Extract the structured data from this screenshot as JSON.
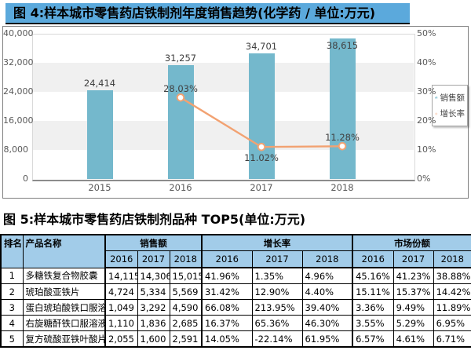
{
  "figure4": {
    "title": "图 4:样本城市零售药店铁制剂年度销售趋势(化学药 / 单位:万元)",
    "legend": [
      {
        "label": "销售额",
        "icon": "mini-bar-chart-icon"
      },
      {
        "label": "增长率",
        "icon": "diamond-marker-icon"
      }
    ]
  },
  "chart_data": {
    "type": "bar",
    "subtype": "combo-bar-line",
    "title": "样本城市零售药店铁制剂年度销售趋势(化学药 / 单位:万元)",
    "categories": [
      "2015",
      "2016",
      "2017",
      "2018"
    ],
    "series": [
      {
        "name": "销售额",
        "type": "bar",
        "axis": "left",
        "values": [
          24414,
          31257,
          34701,
          38615
        ],
        "labels": [
          "24,414",
          "31,257",
          "34,701",
          "38,615"
        ]
      },
      {
        "name": "增长率",
        "type": "line",
        "axis": "right",
        "values": [
          null,
          28.03,
          11.02,
          11.28
        ],
        "labels": [
          null,
          "28.03%",
          "11.02%",
          "11.28%"
        ]
      }
    ],
    "left_axis": {
      "min": 0,
      "max": 40000,
      "ticks": [
        "0",
        "8,000",
        "16,000",
        "24,000",
        "32,000",
        "40,000"
      ]
    },
    "right_axis": {
      "min": 0,
      "max": 50,
      "ticks": [
        "0%",
        "10%",
        "20%",
        "30%",
        "40%",
        "50%"
      ]
    },
    "grid": "alternating-bands",
    "legend_position": "right"
  },
  "figure5": {
    "title": "图 5:样本城市零售药店铁制剂品种 TOP5(单位:万元)",
    "table": {
      "rank_header": "排名",
      "product_header": "产品名称",
      "groups": [
        {
          "label": "销售额",
          "years": [
            "2016",
            "2017",
            "2018"
          ]
        },
        {
          "label": "增长率",
          "years": [
            "2016",
            "2017",
            "2018"
          ]
        },
        {
          "label": "市场份额",
          "years": [
            "2016",
            "2017",
            "2018"
          ]
        }
      ],
      "rows": [
        {
          "rank": "1",
          "product": "多糖铁复合物胶囊",
          "sales": [
            "14,115",
            "14,306",
            "15,015"
          ],
          "growth": [
            "41.96%",
            "1.35%",
            "4.96%"
          ],
          "share": [
            "45.16%",
            "41.23%",
            "38.88%"
          ]
        },
        {
          "rank": "2",
          "product": "琥珀酸亚铁片",
          "sales": [
            "4,724",
            "5,334",
            "5,569"
          ],
          "growth": [
            "31.42%",
            "12.90%",
            "4.40%"
          ],
          "share": [
            "15.11%",
            "15.37%",
            "14.42%"
          ]
        },
        {
          "rank": "3",
          "product": "蛋白琥珀酸铁口服溶液",
          "sales": [
            "1,049",
            "3,292",
            "4,590"
          ],
          "growth": [
            "66.08%",
            "213.95%",
            "39.40%"
          ],
          "share": [
            "3.36%",
            "9.49%",
            "11.89%"
          ]
        },
        {
          "rank": "4",
          "product": "右旋糖酐铁口服溶液",
          "sales": [
            "1,110",
            "1,836",
            "2,685"
          ],
          "growth": [
            "16.37%",
            "65.36%",
            "46.30%"
          ],
          "share": [
            "3.55%",
            "5.29%",
            "6.95%"
          ]
        },
        {
          "rank": "5",
          "product": "复方硫酸亚铁叶酸片",
          "sales": [
            "2,055",
            "1,600",
            "2,591"
          ],
          "growth": [
            "14.05%",
            "-22.14%",
            "61.95%"
          ],
          "share": [
            "6.57%",
            "4.61%",
            "6.71%"
          ]
        }
      ]
    }
  },
  "colors": {
    "title_bg": "#5BA9DC",
    "table_header_bg": "#A2CCE9",
    "bar": "#74B8CC",
    "line": "#F2A272",
    "band": "#F0F0F0",
    "axis_text": "#595959"
  }
}
